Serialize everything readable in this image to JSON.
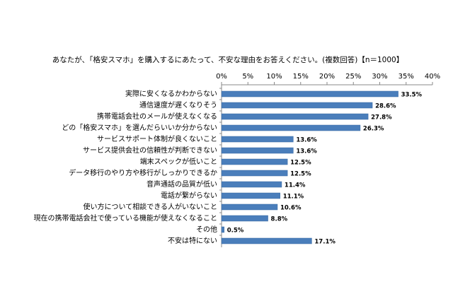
{
  "chart_data": {
    "type": "bar",
    "orientation": "horizontal",
    "title": "あなたが、「格安スマホ」を購入するにあたって、不安な理由をお答えください。(複数回答)【n＝1000】",
    "categories": [
      "実際に安くなるかわからない",
      "通信速度が遅くなりそう",
      "携帯電話会社のメールが使えなくなる",
      "どの「格安スマホ」を選んだらいいか分からない",
      "サービスサポート体制が良くないこと",
      "サービス提供会社の信頼性が判断できない",
      "端末スペックが低いこと",
      "データ移行のやり方や移行がしっかりできるか",
      "音声通話の品質が低い",
      "電話が繋がらない",
      "使い方について相談できる人がいないこと",
      "現在の携帯電話会社で使っている機能が使えなくなること",
      "その他",
      "不安は特にない"
    ],
    "values": [
      33.5,
      28.6,
      27.8,
      26.3,
      13.6,
      13.6,
      12.5,
      12.5,
      11.4,
      11.1,
      10.6,
      8.8,
      0.5,
      17.1
    ],
    "value_labels": [
      "33.5%",
      "28.6%",
      "27.8%",
      "26.3%",
      "13.6%",
      "13.6%",
      "12.5%",
      "12.5%",
      "11.4%",
      "11.1%",
      "10.6%",
      "8.8%",
      "0.5%",
      "17.1%"
    ],
    "color": "#4a7ebb",
    "xlim": [
      0,
      40
    ],
    "xticks": [
      {
        "value": 0,
        "label": "0%"
      },
      {
        "value": 5,
        "label": "5%"
      },
      {
        "value": 10,
        "label": "10%"
      },
      {
        "value": 15,
        "label": "15%"
      },
      {
        "value": 20,
        "label": "20%"
      },
      {
        "value": 25,
        "label": "25%"
      },
      {
        "value": 30,
        "label": "30%"
      },
      {
        "value": 35,
        "label": "35%"
      },
      {
        "value": 40,
        "label": "40%"
      }
    ],
    "grid": false
  }
}
